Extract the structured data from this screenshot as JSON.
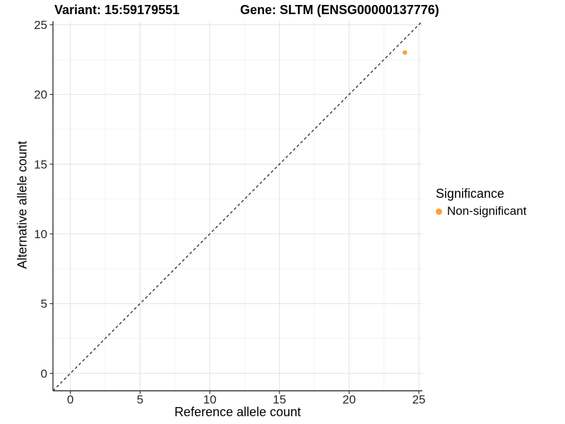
{
  "header": {
    "variant_title": "Variant: 15:59179551",
    "gene_title": "Gene: SLTM (ENSG00000137776)"
  },
  "legend": {
    "title": "Significance",
    "items": [
      {
        "label": "Non-significant",
        "color": "#F9A13B"
      }
    ]
  },
  "chart_data": {
    "type": "scatter",
    "title": "Variant: 15:59179551    Gene: SLTM (ENSG00000137776)",
    "xlabel": "Reference allele count",
    "ylabel": "Alternative allele count",
    "xlim": [
      -1.25,
      25.25
    ],
    "ylim": [
      -1.25,
      25.25
    ],
    "x_ticks": [
      0,
      5,
      10,
      15,
      20,
      25
    ],
    "y_ticks": [
      0,
      5,
      10,
      15,
      20,
      25
    ],
    "x_minor_ticks": [
      2.5,
      7.5,
      12.5,
      17.5,
      22.5
    ],
    "y_minor_ticks": [
      2.5,
      7.5,
      12.5,
      17.5,
      22.5
    ],
    "grid": true,
    "legend_position": "right",
    "series": [
      {
        "name": "Non-significant",
        "color": "#F9A13B",
        "points": [
          [
            24,
            23
          ]
        ]
      }
    ],
    "reference_line": {
      "slope": 1,
      "intercept": 0,
      "style": "dashed",
      "color": "#000000"
    }
  },
  "style": {
    "background": "#FFFFFF",
    "axis_color": "#333333",
    "grid_major_color": "#E4E4E4",
    "grid_minor_color": "#F2F2F2",
    "tick_label_color": "#262626",
    "point_color": "#F9A13B"
  }
}
